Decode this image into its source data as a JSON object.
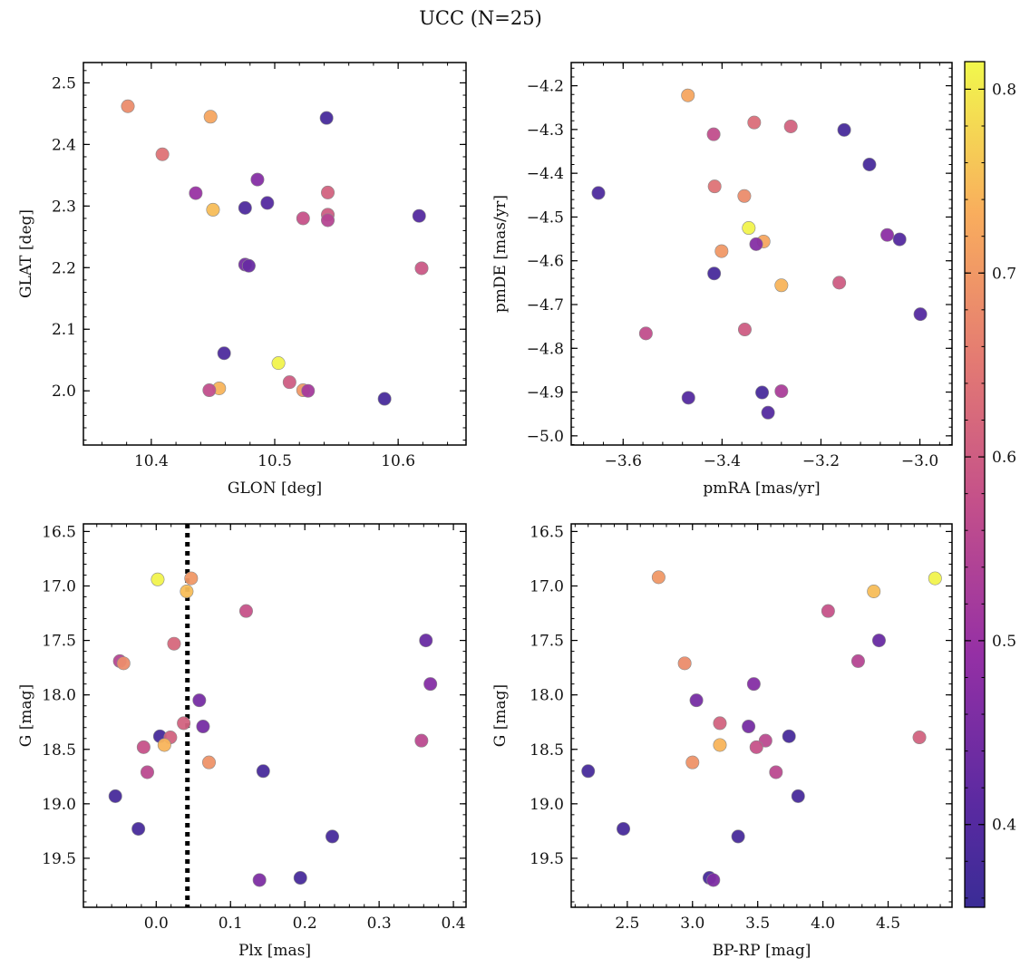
{
  "title": "UCC (N=25)",
  "colorbar": {
    "range": [
      0.355,
      0.815
    ],
    "ticks": [
      0.4,
      0.5,
      0.6,
      0.7,
      0.8
    ],
    "tick_labels": [
      "0.4",
      "0.5",
      "0.6",
      "0.7",
      "0.8"
    ],
    "colormap": "plasma"
  },
  "chart_data": [
    {
      "id": "glon-glat",
      "type": "scatter",
      "xlabel": "GLON [deg]",
      "ylabel": "GLAT [deg]",
      "xlim": [
        10.345,
        10.655
      ],
      "ylim": [
        1.912,
        2.533
      ],
      "xticks": [
        10.4,
        10.5,
        10.6
      ],
      "xtick_labels": [
        "10.4",
        "10.5",
        "10.6"
      ],
      "yticks": [
        2.0,
        2.1,
        2.2,
        2.3,
        2.4,
        2.5
      ],
      "ytick_labels": [
        "2.0",
        "2.1",
        "2.2",
        "2.3",
        "2.4",
        "2.5"
      ],
      "points": [
        {
          "x": 10.381,
          "y": 2.462,
          "c": 0.68
        },
        {
          "x": 10.448,
          "y": 2.445,
          "c": 0.72
        },
        {
          "x": 10.542,
          "y": 2.443,
          "c": 0.38
        },
        {
          "x": 10.409,
          "y": 2.384,
          "c": 0.64
        },
        {
          "x": 10.486,
          "y": 2.343,
          "c": 0.47
        },
        {
          "x": 10.436,
          "y": 2.321,
          "c": 0.5
        },
        {
          "x": 10.543,
          "y": 2.322,
          "c": 0.61
        },
        {
          "x": 10.494,
          "y": 2.305,
          "c": 0.4
        },
        {
          "x": 10.476,
          "y": 2.297,
          "c": 0.39
        },
        {
          "x": 10.45,
          "y": 2.294,
          "c": 0.75
        },
        {
          "x": 10.543,
          "y": 2.286,
          "c": 0.6
        },
        {
          "x": 10.617,
          "y": 2.284,
          "c": 0.4
        },
        {
          "x": 10.523,
          "y": 2.28,
          "c": 0.58
        },
        {
          "x": 10.543,
          "y": 2.277,
          "c": 0.55
        },
        {
          "x": 10.476,
          "y": 2.205,
          "c": 0.45
        },
        {
          "x": 10.479,
          "y": 2.203,
          "c": 0.43
        },
        {
          "x": 10.619,
          "y": 2.199,
          "c": 0.59
        },
        {
          "x": 10.459,
          "y": 2.061,
          "c": 0.39
        },
        {
          "x": 10.503,
          "y": 2.045,
          "c": 0.81
        },
        {
          "x": 10.512,
          "y": 2.014,
          "c": 0.6
        },
        {
          "x": 10.455,
          "y": 2.004,
          "c": 0.74
        },
        {
          "x": 10.523,
          "y": 2.001,
          "c": 0.7
        },
        {
          "x": 10.527,
          "y": 2.0,
          "c": 0.52
        },
        {
          "x": 10.447,
          "y": 2.001,
          "c": 0.57
        },
        {
          "x": 10.589,
          "y": 1.987,
          "c": 0.38
        }
      ]
    },
    {
      "id": "pmra-pmde",
      "type": "scatter",
      "xlabel": "pmRA [mas/yr]",
      "ylabel": "pmDE [mas/yr]",
      "xlim": [
        -3.705,
        -2.935
      ],
      "ylim": [
        -5.021,
        -4.147
      ],
      "xticks": [
        -3.6,
        -3.4,
        -3.2,
        -3.0
      ],
      "xtick_labels": [
        "−3.6",
        "−3.4",
        "−3.2",
        "−3.0"
      ],
      "yticks": [
        -5.0,
        -4.9,
        -4.8,
        -4.7,
        -4.6,
        -4.5,
        -4.4,
        -4.3,
        -4.2
      ],
      "ytick_labels": [
        "−5.0",
        "−4.9",
        "−4.8",
        "−4.7",
        "−4.6",
        "−4.5",
        "−4.4",
        "−4.3",
        "−4.2"
      ],
      "points": [
        {
          "x": -3.469,
          "y": -4.222,
          "c": 0.72
        },
        {
          "x": -3.335,
          "y": -4.284,
          "c": 0.63
        },
        {
          "x": -3.261,
          "y": -4.293,
          "c": 0.61
        },
        {
          "x": -3.153,
          "y": -4.301,
          "c": 0.38
        },
        {
          "x": -3.417,
          "y": -4.311,
          "c": 0.57
        },
        {
          "x": -3.102,
          "y": -4.38,
          "c": 0.38
        },
        {
          "x": -3.65,
          "y": -4.445,
          "c": 0.39
        },
        {
          "x": -3.415,
          "y": -4.43,
          "c": 0.64
        },
        {
          "x": -3.355,
          "y": -4.452,
          "c": 0.68
        },
        {
          "x": -3.346,
          "y": -4.525,
          "c": 0.81
        },
        {
          "x": -3.066,
          "y": -4.541,
          "c": 0.48
        },
        {
          "x": -3.041,
          "y": -4.551,
          "c": 0.4
        },
        {
          "x": -3.316,
          "y": -4.556,
          "c": 0.72
        },
        {
          "x": -3.331,
          "y": -4.562,
          "c": 0.47
        },
        {
          "x": -3.401,
          "y": -4.578,
          "c": 0.7
        },
        {
          "x": -3.416,
          "y": -4.629,
          "c": 0.38
        },
        {
          "x": -3.163,
          "y": -4.65,
          "c": 0.6
        },
        {
          "x": -3.28,
          "y": -4.656,
          "c": 0.74
        },
        {
          "x": -2.999,
          "y": -4.722,
          "c": 0.4
        },
        {
          "x": -3.354,
          "y": -4.757,
          "c": 0.6
        },
        {
          "x": -3.554,
          "y": -4.766,
          "c": 0.57
        },
        {
          "x": -3.468,
          "y": -4.913,
          "c": 0.4
        },
        {
          "x": -3.319,
          "y": -4.901,
          "c": 0.38
        },
        {
          "x": -3.28,
          "y": -4.898,
          "c": 0.53
        },
        {
          "x": -3.307,
          "y": -4.947,
          "c": 0.4
        }
      ]
    },
    {
      "id": "plx-g",
      "type": "scatter",
      "xlabel": "Plx [mas]",
      "ylabel": "G [mag]",
      "xlim": [
        -0.098,
        0.417
      ],
      "ylim": [
        19.95,
        16.43
      ],
      "xticks": [
        0.0,
        0.1,
        0.2,
        0.3,
        0.4
      ],
      "xtick_labels": [
        "0.0",
        "0.1",
        "0.2",
        "0.3",
        "0.4"
      ],
      "yticks": [
        16.5,
        17.0,
        17.5,
        18.0,
        18.5,
        19.0,
        19.5
      ],
      "ytick_labels": [
        "16.5",
        "17.0",
        "17.5",
        "18.0",
        "18.5",
        "19.0",
        "19.5"
      ],
      "vline": 0.042,
      "points": [
        {
          "x": 0.002,
          "y": 16.94,
          "c": 0.81
        },
        {
          "x": 0.047,
          "y": 16.93,
          "c": 0.7
        },
        {
          "x": 0.041,
          "y": 17.05,
          "c": 0.75
        },
        {
          "x": 0.121,
          "y": 17.23,
          "c": 0.58
        },
        {
          "x": 0.024,
          "y": 17.53,
          "c": 0.62
        },
        {
          "x": 0.363,
          "y": 17.5,
          "c": 0.43
        },
        {
          "x": -0.049,
          "y": 17.69,
          "c": 0.55
        },
        {
          "x": -0.044,
          "y": 17.71,
          "c": 0.68
        },
        {
          "x": 0.369,
          "y": 17.9,
          "c": 0.47
        },
        {
          "x": 0.058,
          "y": 18.05,
          "c": 0.45
        },
        {
          "x": 0.037,
          "y": 18.26,
          "c": 0.61
        },
        {
          "x": 0.063,
          "y": 18.29,
          "c": 0.45
        },
        {
          "x": 0.005,
          "y": 18.38,
          "c": 0.38
        },
        {
          "x": 0.019,
          "y": 18.39,
          "c": 0.61
        },
        {
          "x": 0.357,
          "y": 18.42,
          "c": 0.56
        },
        {
          "x": 0.011,
          "y": 18.46,
          "c": 0.74
        },
        {
          "x": -0.017,
          "y": 18.48,
          "c": 0.58
        },
        {
          "x": 0.071,
          "y": 18.62,
          "c": 0.69
        },
        {
          "x": 0.144,
          "y": 18.7,
          "c": 0.38
        },
        {
          "x": -0.012,
          "y": 18.71,
          "c": 0.56
        },
        {
          "x": -0.055,
          "y": 18.93,
          "c": 0.38
        },
        {
          "x": -0.024,
          "y": 19.23,
          "c": 0.38
        },
        {
          "x": 0.237,
          "y": 19.3,
          "c": 0.38
        },
        {
          "x": 0.194,
          "y": 19.68,
          "c": 0.38
        },
        {
          "x": 0.139,
          "y": 19.7,
          "c": 0.46
        }
      ]
    },
    {
      "id": "bprp-g",
      "type": "scatter",
      "xlabel": "BP-RP [mag]",
      "ylabel": "G [mag]",
      "xlim": [
        2.07,
        4.99
      ],
      "ylim": [
        19.95,
        16.43
      ],
      "xticks": [
        2.5,
        3.0,
        3.5,
        4.0,
        4.5
      ],
      "xtick_labels": [
        "2.5",
        "3.0",
        "3.5",
        "4.0",
        "4.5"
      ],
      "yticks": [
        16.5,
        17.0,
        17.5,
        18.0,
        18.5,
        19.0,
        19.5
      ],
      "ytick_labels": [
        "16.5",
        "17.0",
        "17.5",
        "18.0",
        "18.5",
        "19.0",
        "19.5"
      ],
      "points": [
        {
          "x": 2.74,
          "y": 16.92,
          "c": 0.7
        },
        {
          "x": 4.86,
          "y": 16.93,
          "c": 0.81
        },
        {
          "x": 4.39,
          "y": 17.05,
          "c": 0.75
        },
        {
          "x": 4.04,
          "y": 17.23,
          "c": 0.58
        },
        {
          "x": 4.43,
          "y": 17.5,
          "c": 0.43
        },
        {
          "x": 4.27,
          "y": 17.69,
          "c": 0.55
        },
        {
          "x": 2.94,
          "y": 17.71,
          "c": 0.68
        },
        {
          "x": 3.47,
          "y": 17.9,
          "c": 0.47
        },
        {
          "x": 3.03,
          "y": 18.05,
          "c": 0.45
        },
        {
          "x": 3.21,
          "y": 18.26,
          "c": 0.61
        },
        {
          "x": 3.43,
          "y": 18.29,
          "c": 0.45
        },
        {
          "x": 3.74,
          "y": 18.38,
          "c": 0.38
        },
        {
          "x": 4.74,
          "y": 18.39,
          "c": 0.61
        },
        {
          "x": 3.56,
          "y": 18.42,
          "c": 0.56
        },
        {
          "x": 3.21,
          "y": 18.46,
          "c": 0.74
        },
        {
          "x": 3.49,
          "y": 18.48,
          "c": 0.58
        },
        {
          "x": 3.0,
          "y": 18.62,
          "c": 0.69
        },
        {
          "x": 2.2,
          "y": 18.7,
          "c": 0.38
        },
        {
          "x": 3.64,
          "y": 18.71,
          "c": 0.56
        },
        {
          "x": 3.81,
          "y": 18.93,
          "c": 0.38
        },
        {
          "x": 2.47,
          "y": 19.23,
          "c": 0.38
        },
        {
          "x": 3.35,
          "y": 19.3,
          "c": 0.38
        },
        {
          "x": 3.13,
          "y": 19.68,
          "c": 0.38
        },
        {
          "x": 3.16,
          "y": 19.7,
          "c": 0.46
        }
      ]
    }
  ]
}
